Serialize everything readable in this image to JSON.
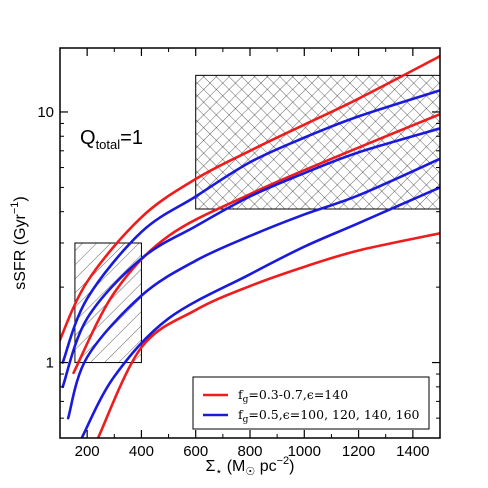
{
  "chart_data": {
    "type": "line",
    "title": "",
    "xlabel": "Σ⋆ (M☉ pc⁻²)",
    "ylabel": "sSFR (Gyr⁻¹)",
    "xlim": [
      100,
      1500
    ],
    "ylim": [
      0.5,
      18
    ],
    "yscale": "log",
    "grid": false,
    "x_ticks": [
      200,
      400,
      600,
      800,
      1000,
      1200,
      1400
    ],
    "y_ticks": [
      1,
      10
    ],
    "annotation": "Q_total=1",
    "legend": {
      "position": "bottom-right",
      "entries": [
        {
          "label": "f_g=0.3-0.7,ϵ=140",
          "color": "#ee1c1c"
        },
        {
          "label": "f_g=0.5,ϵ=100, 120, 140, 160",
          "color": "#1a1adc"
        }
      ]
    },
    "series": [
      {
        "color": "#ee1c1c",
        "points": [
          [
            90,
            1.16
          ],
          [
            200,
            2.1
          ],
          [
            400,
            3.8
          ],
          [
            600,
            5.4
          ],
          [
            800,
            7.0
          ],
          [
            1000,
            8.9
          ],
          [
            1200,
            11.3
          ],
          [
            1500,
            16.7
          ]
        ]
      },
      {
        "color": "#ee1c1c",
        "points": [
          [
            150,
            0.91
          ],
          [
            300,
            1.9
          ],
          [
            500,
            3.2
          ],
          [
            800,
            4.7
          ],
          [
            1100,
            6.5
          ],
          [
            1500,
            9.8
          ]
        ]
      },
      {
        "color": "#ee1c1c",
        "points": [
          [
            240,
            0.5
          ],
          [
            400,
            1.15
          ],
          [
            600,
            1.62
          ],
          [
            800,
            2.02
          ],
          [
            1000,
            2.41
          ],
          [
            1200,
            2.8
          ],
          [
            1500,
            3.28
          ]
        ]
      },
      {
        "color": "#1a1adc",
        "points": [
          [
            110,
            1.0
          ],
          [
            200,
            1.8
          ],
          [
            400,
            3.32
          ],
          [
            600,
            4.6
          ],
          [
            800,
            6.3
          ],
          [
            1000,
            7.9
          ],
          [
            1200,
            9.6
          ],
          [
            1500,
            12.2
          ]
        ]
      },
      {
        "color": "#1a1adc",
        "points": [
          [
            110,
            0.8
          ],
          [
            200,
            1.5
          ],
          [
            400,
            2.6
          ],
          [
            600,
            3.5
          ],
          [
            800,
            4.6
          ],
          [
            1000,
            5.7
          ],
          [
            1200,
            6.9
          ],
          [
            1500,
            8.6
          ]
        ]
      },
      {
        "color": "#1a1adc",
        "points": [
          [
            130,
            0.6
          ],
          [
            200,
            1.05
          ],
          [
            400,
            1.85
          ],
          [
            600,
            2.55
          ],
          [
            800,
            3.2
          ],
          [
            1000,
            3.9
          ],
          [
            1200,
            4.65
          ],
          [
            1500,
            6.5
          ]
        ]
      },
      {
        "color": "#1a1adc",
        "points": [
          [
            180,
            0.5
          ],
          [
            300,
            0.88
          ],
          [
            500,
            1.5
          ],
          [
            800,
            2.25
          ],
          [
            1000,
            2.9
          ],
          [
            1200,
            3.6
          ],
          [
            1500,
            5.0
          ]
        ]
      }
    ],
    "regions": [
      {
        "pattern": "diagonal",
        "x": [
          155,
          400
        ],
        "y": [
          1.0,
          3.0
        ]
      },
      {
        "pattern": "crosshatch",
        "x": [
          600,
          1500
        ],
        "y": [
          4.1,
          14.0
        ]
      }
    ]
  }
}
